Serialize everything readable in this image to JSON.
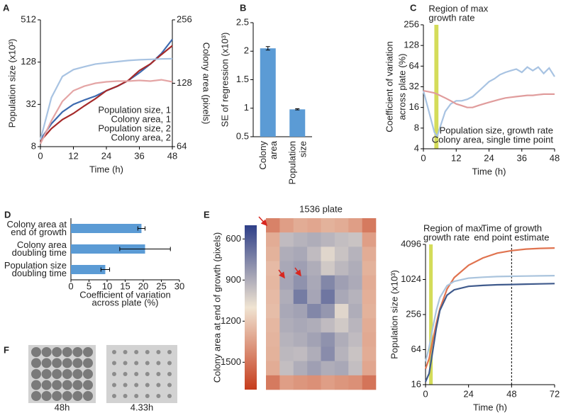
{
  "chart_data": [
    {
      "panel": "A",
      "type": "line",
      "log_base": 2,
      "xlabel": "Time (h)",
      "ylabel": "Population size (x10³)",
      "y2label": "Colony area (pixels)",
      "x": [
        0,
        4,
        8,
        12,
        16,
        20,
        24,
        28,
        32,
        36,
        40,
        44,
        48
      ],
      "xlim": [
        0,
        48
      ],
      "xticks": [
        0,
        12,
        24,
        36,
        48
      ],
      "ylim": [
        8,
        512
      ],
      "yticks": [
        8,
        32,
        128,
        512
      ],
      "y2lim": [
        64,
        256
      ],
      "y2ticks": [
        64,
        128,
        256
      ],
      "legend": "lower right",
      "series": [
        {
          "name": "Population size, 1",
          "color": "#3d6aaf",
          "values": [
            10,
            17,
            25,
            32,
            37,
            42,
            50,
            58,
            70,
            90,
            120,
            170,
            270
          ]
        },
        {
          "name": "Colony area, 1",
          "color": "#a52a2a",
          "axis": "y2",
          "values": [
            68,
            78,
            86,
            92,
            100,
            108,
            118,
            124,
            132,
            147,
            158,
            175,
            193
          ]
        },
        {
          "name": "Population size, 2",
          "color": "#a8c3e2",
          "values": [
            10,
            40,
            80,
            100,
            110,
            120,
            125,
            130,
            135,
            138,
            140,
            142,
            143
          ]
        },
        {
          "name": "Colony area, 2",
          "color": "#e4a5a5",
          "axis": "y2",
          "values": [
            66,
            85,
            105,
            118,
            124,
            128,
            130,
            131,
            131,
            132,
            131,
            133,
            130
          ]
        }
      ]
    },
    {
      "panel": "B",
      "type": "bar",
      "ylabel": "SE of regression (x10³)",
      "categories": [
        [
          "Colony",
          "area"
        ],
        [
          "Population",
          "size"
        ]
      ],
      "values": [
        2.05,
        0.98
      ],
      "errors": [
        0.03,
        0.01
      ],
      "color": "#5b9bd5",
      "ylim": [
        0.5,
        2.5
      ],
      "yticks": [
        0.5,
        1,
        1.5,
        2,
        2.5
      ]
    },
    {
      "panel": "C",
      "type": "line",
      "log_base": 2,
      "xlabel": "Time (h)",
      "ylabel": [
        "Coefficient of variation",
        "across plate (%)"
      ],
      "x": [
        0,
        2,
        4,
        5,
        6,
        8,
        10,
        12,
        14,
        16,
        18,
        20,
        22,
        24,
        26,
        28,
        30,
        32,
        34,
        36,
        38,
        40,
        42,
        44,
        46,
        48
      ],
      "xlim": [
        0,
        48
      ],
      "xticks": [
        0,
        12,
        24,
        36,
        48
      ],
      "ylim": [
        4,
        256
      ],
      "yticks": [
        4,
        8,
        16,
        32,
        64,
        128,
        256
      ],
      "band": [
        4,
        5.5
      ],
      "band_color": "#d4dc5a",
      "annotation": [
        "Region of max",
        "growth rate"
      ],
      "legend": "lower right",
      "series": [
        {
          "name": "Population size, growth rate",
          "color": "#a8c3e2",
          "values": [
            28,
            14,
            7,
            6,
            8,
            14,
            18,
            20,
            20,
            21,
            23,
            27,
            32,
            38,
            42,
            48,
            52,
            55,
            58,
            52,
            62,
            55,
            62,
            50,
            60,
            45
          ]
        },
        {
          "name": "Colony area, single time point",
          "color": "#e09c9c",
          "values": [
            28,
            27,
            26,
            25,
            24,
            22,
            20,
            18,
            17,
            16,
            16,
            17,
            18,
            19,
            20,
            21,
            22,
            22.5,
            23,
            23.5,
            24,
            24,
            24.5,
            25,
            25,
            25
          ]
        }
      ]
    },
    {
      "panel": "D",
      "type": "barh",
      "categories": [
        [
          "Colony area at",
          "end of growth"
        ],
        [
          "Colony area",
          "doubling time"
        ],
        [
          "Population size",
          "doubling time"
        ]
      ],
      "values": [
        19.5,
        20.5,
        9.5
      ],
      "errors": [
        1,
        7,
        1.2
      ],
      "color": "#5b9bd5",
      "xlim": [
        0,
        30
      ],
      "xticks": [
        0,
        5,
        10,
        15,
        20,
        25,
        30
      ],
      "xlabel": [
        "Coefficient of variation",
        "across plate (%)"
      ]
    },
    {
      "panel": "E",
      "type": "heatmap",
      "title": "1536 plate",
      "colorbar_label": "Colony area at  end of growth (pixels)",
      "clim": [
        500,
        1700
      ],
      "cticks": [
        600,
        900,
        1200,
        1500
      ],
      "colormap": [
        "#2e3f88",
        "#f0e4d2",
        "#c63c1c"
      ],
      "values": [
        [
          1450,
          1350,
          1300,
          1320,
          1280,
          1300,
          1350,
          1480
        ],
        [
          1300,
          950,
          920,
          900,
          930,
          960,
          980,
          1350
        ],
        [
          1280,
          900,
          880,
          950,
          1050,
          980,
          920,
          1300
        ],
        [
          1250,
          880,
          850,
          900,
          1000,
          940,
          900,
          1280
        ],
        [
          1260,
          870,
          800,
          880,
          760,
          850,
          890,
          1300
        ],
        [
          1250,
          900,
          720,
          870,
          700,
          880,
          920,
          1290
        ],
        [
          1240,
          880,
          860,
          760,
          820,
          1050,
          900,
          1280
        ],
        [
          1260,
          900,
          880,
          900,
          950,
          1000,
          930,
          1300
        ],
        [
          1270,
          920,
          900,
          860,
          800,
          900,
          950,
          1310
        ],
        [
          1280,
          940,
          950,
          900,
          780,
          920,
          980,
          1300
        ],
        [
          1300,
          960,
          900,
          850,
          900,
          880,
          960,
          1320
        ],
        [
          1480,
          1350,
          1380,
          1400,
          1350,
          1380,
          1400,
          1500
        ]
      ]
    },
    {
      "type": "line",
      "log_base": 2,
      "xlabel": "Time (h)",
      "ylabel": "Population size (x10³)",
      "x": [
        0,
        2,
        4,
        6,
        8,
        12,
        16,
        24,
        32,
        40,
        48,
        56,
        64,
        72
      ],
      "xlim": [
        0,
        72
      ],
      "xticks": [
        0,
        24,
        48,
        72
      ],
      "ylim": [
        16,
        4096
      ],
      "yticks": [
        16,
        64,
        256,
        1024,
        4096
      ],
      "band": [
        2,
        4
      ],
      "band_color": "#d4dc5a",
      "annotation": [
        "Region of max",
        "growth rate"
      ],
      "vline": 48,
      "vline_annotation": [
        "Time of growth",
        "end point estimate"
      ],
      "series": [
        {
          "color": "#e0734f",
          "values": [
            30,
            45,
            90,
            180,
            320,
            700,
            1100,
            1800,
            2400,
            2900,
            3200,
            3400,
            3500,
            3550
          ]
        },
        {
          "color": "#aac4dd",
          "values": [
            40,
            70,
            150,
            300,
            500,
            800,
            950,
            1080,
            1120,
            1150,
            1160,
            1170,
            1180,
            1190
          ]
        },
        {
          "color": "#3f5a8c",
          "values": [
            18,
            25,
            60,
            150,
            300,
            550,
            680,
            780,
            810,
            830,
            840,
            850,
            860,
            870
          ]
        }
      ]
    }
  ],
  "panel_f": {
    "panel": "F",
    "labels": [
      "48h",
      "4.33h"
    ]
  }
}
